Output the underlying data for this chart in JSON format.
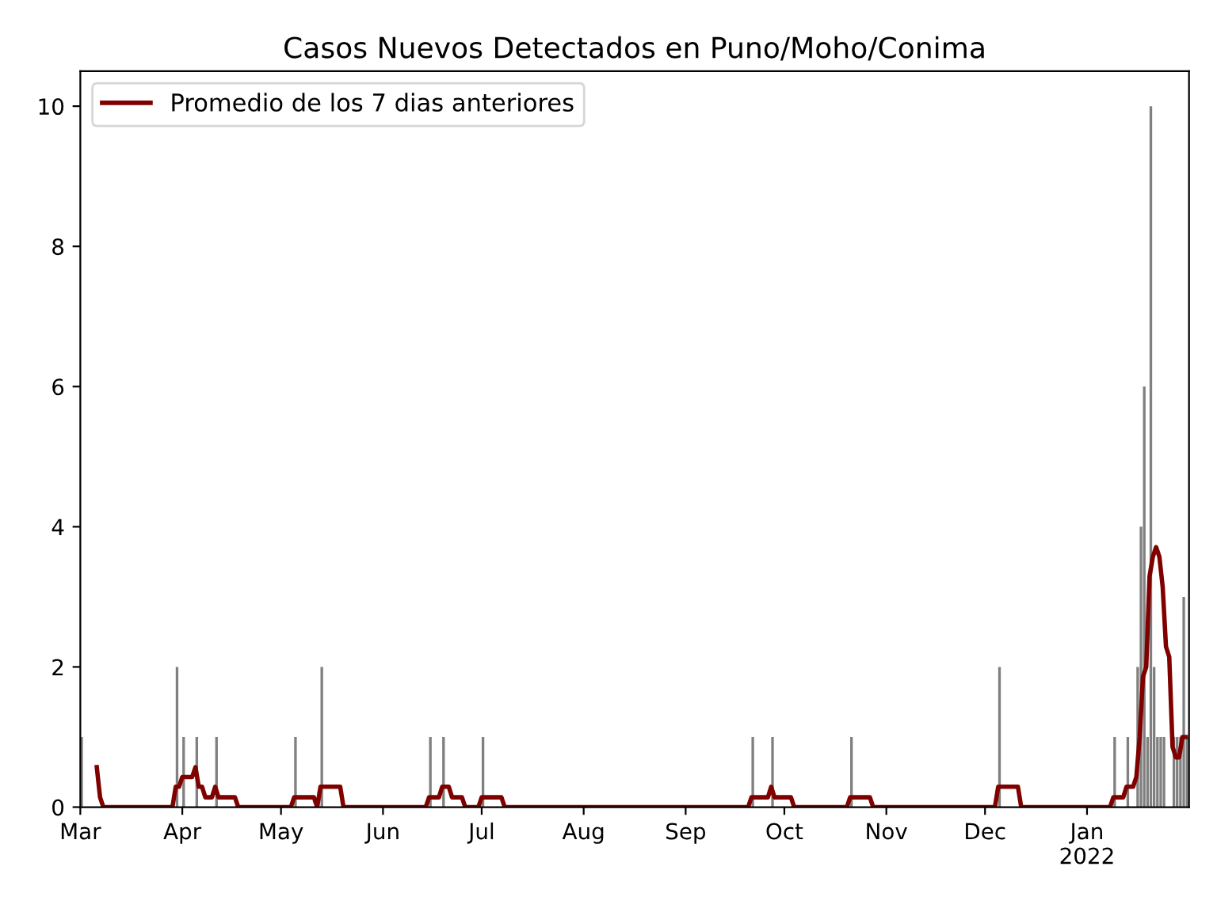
{
  "chart_data": {
    "type": "bar",
    "title": "Casos Nuevos Detectados en Puno/Moho/Conima",
    "series": [
      {
        "color": "#808080",
        "x": [
          "2021-03-01",
          "2021-03-30",
          "2021-04-01",
          "2021-04-05",
          "2021-04-11",
          "2021-05-05",
          "2021-05-13",
          "2021-06-15",
          "2021-06-19",
          "2021-07-01",
          "2021-09-21",
          "2021-09-27",
          "2021-10-21",
          "2021-12-05",
          "2022-01-09",
          "2022-01-13",
          "2022-01-16",
          "2022-01-17",
          "2022-01-18",
          "2022-01-19",
          "2022-01-20",
          "2022-01-21",
          "2022-01-22",
          "2022-01-23",
          "2022-01-24",
          "2022-01-27",
          "2022-01-28",
          "2022-01-29",
          "2022-01-30",
          "2022-01-31"
        ],
        "values": [
          1,
          2,
          1,
          1,
          1,
          1,
          2,
          1,
          1,
          1,
          1,
          1,
          1,
          2,
          1,
          1,
          2,
          4,
          6,
          1,
          10,
          2,
          1,
          1,
          1,
          1,
          1,
          1,
          3,
          1
        ]
      },
      {
        "type": "line",
        "name": "Promedio de los 7 dias anteriores",
        "color": "#800000",
        "x": [
          "2021-03-06",
          "2021-03-07",
          "2021-03-08",
          "2021-03-29",
          "2021-03-30",
          "2021-03-31",
          "2021-04-01",
          "2021-04-04",
          "2021-04-05",
          "2021-04-06",
          "2021-04-07",
          "2021-04-08",
          "2021-04-10",
          "2021-04-11",
          "2021-04-12",
          "2021-04-17",
          "2021-04-18",
          "2021-05-04",
          "2021-05-05",
          "2021-05-11",
          "2021-05-12",
          "2021-05-13",
          "2021-05-19",
          "2021-05-20",
          "2021-06-14",
          "2021-06-15",
          "2021-06-18",
          "2021-06-19",
          "2021-06-21",
          "2021-06-22",
          "2021-06-25",
          "2021-06-26",
          "2021-06-30",
          "2021-07-01",
          "2021-07-07",
          "2021-07-08",
          "2021-09-20",
          "2021-09-21",
          "2021-09-26",
          "2021-09-27",
          "2021-09-28",
          "2021-10-03",
          "2021-10-04",
          "2021-10-20",
          "2021-10-21",
          "2021-10-27",
          "2021-10-28",
          "2021-12-04",
          "2021-12-05",
          "2021-12-11",
          "2021-12-12",
          "2022-01-08",
          "2022-01-09",
          "2022-01-12",
          "2022-01-13",
          "2022-01-15",
          "2022-01-16",
          "2022-01-17",
          "2022-01-18",
          "2022-01-19",
          "2022-01-20",
          "2022-01-21",
          "2022-01-22",
          "2022-01-23",
          "2022-01-24",
          "2022-01-25",
          "2022-01-26",
          "2022-01-27",
          "2022-01-28",
          "2022-01-29",
          "2022-01-30",
          "2022-01-31"
        ],
        "values": [
          0.57,
          0.14,
          0,
          0,
          0.29,
          0.29,
          0.43,
          0.43,
          0.57,
          0.29,
          0.29,
          0.14,
          0.14,
          0.29,
          0.14,
          0.14,
          0,
          0,
          0.14,
          0.14,
          0,
          0.29,
          0.29,
          0,
          0,
          0.14,
          0.14,
          0.29,
          0.29,
          0.14,
          0.14,
          0,
          0,
          0.14,
          0.14,
          0,
          0,
          0.14,
          0.14,
          0.29,
          0.14,
          0.14,
          0,
          0,
          0.14,
          0.14,
          0,
          0,
          0.29,
          0.29,
          0,
          0,
          0.14,
          0.14,
          0.29,
          0.29,
          0.43,
          1.0,
          1.86,
          2.0,
          3.29,
          3.57,
          3.71,
          3.57,
          3.14,
          2.29,
          2.14,
          0.86,
          0.71,
          0.71,
          1.0,
          1.0
        ]
      }
    ],
    "xlim": [
      "2021-03-01",
      "2022-02-01"
    ],
    "xticks": [
      {
        "value": "2021-03-01",
        "label": "Mar"
      },
      {
        "value": "2021-04-01",
        "label": "Apr"
      },
      {
        "value": "2021-05-01",
        "label": "May"
      },
      {
        "value": "2021-06-01",
        "label": "Jun"
      },
      {
        "value": "2021-07-01",
        "label": "Jul"
      },
      {
        "value": "2021-08-01",
        "label": "Aug"
      },
      {
        "value": "2021-09-01",
        "label": "Sep"
      },
      {
        "value": "2021-10-01",
        "label": "Oct"
      },
      {
        "value": "2021-11-01",
        "label": "Nov"
      },
      {
        "value": "2021-12-01",
        "label": "Dec"
      },
      {
        "value": "2022-01-01",
        "label": "Jan\n2022"
      }
    ],
    "ylim": [
      0,
      10.5
    ],
    "yticks": [
      0,
      2,
      4,
      6,
      8,
      10
    ],
    "legend": "top left",
    "grid": false,
    "marker": "none",
    "line_style": "solid"
  }
}
